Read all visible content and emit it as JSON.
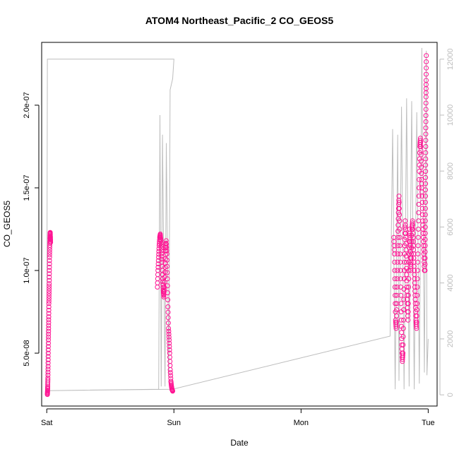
{
  "chart_data": {
    "type": "scatter",
    "title": "ATOM4 Northeast_Pacific_2 CO_GEOS5",
    "xlabel": "Date",
    "ylabel": "CO_GEOS5",
    "x_ticks": [
      "Sat",
      "Sun",
      "Mon",
      "Tue"
    ],
    "xlim": [
      -0.04,
      3.07
    ],
    "ylim": [
      1.8e-08,
      2.38e-07
    ],
    "y_ticks": [
      {
        "value": 5e-08,
        "label": "5.0e-08"
      },
      {
        "value": 1e-07,
        "label": "1.0e-07"
      },
      {
        "value": 1.5e-07,
        "label": "1.5e-07"
      },
      {
        "value": 2e-07,
        "label": "2.0e-07"
      }
    ],
    "y2lim": [
      -400,
      12600
    ],
    "y2_ticks": [
      {
        "value": 0,
        "label": "0"
      },
      {
        "value": 2000,
        "label": "2000"
      },
      {
        "value": 4000,
        "label": "4000"
      },
      {
        "value": 6000,
        "label": "6000"
      },
      {
        "value": 8000,
        "label": "8000"
      },
      {
        "value": 10000,
        "label": "10000"
      },
      {
        "value": 12000,
        "label": "12000"
      }
    ],
    "series": [
      {
        "kind": "points",
        "axis": "left",
        "color": "#ff1493",
        "segments": [
          {
            "x0": 0.005,
            "x1": 0.03,
            "y": [
              2.5e-08,
              2.7e-08,
              3e-08,
              3.5e-08,
              4.2e-08,
              5e-08,
              5.8e-08,
              6.5e-08,
              7.2e-08,
              8e-08,
              8.6e-08,
              9.2e-08,
              1e-07,
              1.08e-07,
              1.14e-07,
              1.19e-07,
              1.22e-07,
              1.23e-07,
              1.2e-07,
              1.17e-07
            ]
          },
          {
            "x0": 0.87,
            "x1": 0.99,
            "y": [
              9e-08,
              1e-07,
              1.08e-07,
              1.15e-07,
              1.2e-07,
              1.22e-07,
              1.18e-07,
              1.12e-07,
              1.05e-07,
              9.5e-08,
              8.8e-08,
              8.4e-08,
              9e-08,
              1.02e-07,
              1.12e-07,
              1.18e-07,
              1.1e-07,
              9.5e-08,
              7.8e-08,
              6.5e-08,
              5.8e-08,
              5e-08,
              4e-08,
              3.3e-08,
              3e-08,
              2.8e-08,
              2.7e-08
            ]
          },
          {
            "x0": 2.73,
            "x1": 2.97,
            "y": [
              1.2e-07,
              1.1e-07,
              9e-08,
              7e-08,
              6.5e-08,
              8e-08,
              1e-07,
              1.2e-07,
              1.35e-07,
              1.45e-07,
              1.3e-07,
              1.1e-07,
              9e-08,
              7e-08,
              5.5e-08,
              4.5e-08,
              5e-08,
              7e-08,
              9.5e-08,
              1.15e-07,
              1.3e-07,
              1.2e-07,
              1.05e-07,
              9e-08,
              8e-08,
              7e-08,
              9e-08,
              1.1e-07,
              1.25e-07,
              1.15e-07,
              1e-07,
              1.1e-07,
              1.25e-07,
              1.3e-07,
              1.2e-07,
              1.1e-07,
              1e-07,
              9e-08,
              8e-08,
              7e-08,
              6.5e-08,
              8e-08,
              1e-07,
              1.2e-07,
              1.4e-07,
              1.6e-07,
              1.75e-07,
              1.8e-07,
              1.7e-07,
              1.55e-07,
              1.45e-07,
              1.3e-07,
              1.2e-07,
              1.1e-07,
              1e-07
            ]
          },
          {
            "x0": 2.975,
            "x1": 2.985,
            "y": [
              1e-07,
              1.15e-07,
              1.3e-07,
              1.45e-07,
              1.6e-07,
              1.75e-07,
              1.9e-07,
              2.05e-07,
              2.15e-07,
              2.3e-07
            ]
          }
        ]
      },
      {
        "kind": "line",
        "axis": "right",
        "color": "#bdbdbd",
        "points": [
          [
            0.0,
            150
          ],
          [
            0.005,
            12000
          ],
          [
            1.0,
            12000
          ],
          [
            0.99,
            11300
          ],
          [
            0.98,
            11100
          ],
          [
            0.97,
            10900
          ],
          [
            0.96,
            600
          ],
          [
            0.94,
            9000
          ],
          [
            0.93,
            300
          ],
          [
            0.91,
            9300
          ],
          [
            0.9,
            300
          ],
          [
            0.89,
            10000
          ],
          [
            0.88,
            200
          ],
          [
            0.0,
            150
          ],
          [
            0.99,
            200
          ],
          [
            2.7,
            2100
          ],
          [
            2.72,
            9500
          ],
          [
            2.74,
            200
          ],
          [
            2.76,
            9300
          ],
          [
            2.77,
            500
          ],
          [
            2.79,
            10300
          ],
          [
            2.81,
            200
          ],
          [
            2.83,
            10600
          ],
          [
            2.85,
            300
          ],
          [
            2.87,
            10500
          ],
          [
            2.89,
            200
          ],
          [
            2.91,
            10100
          ],
          [
            2.93,
            400
          ],
          [
            2.95,
            12400
          ],
          [
            2.97,
            800
          ],
          [
            2.985,
            12300
          ],
          [
            2.99,
            700
          ],
          [
            3.0,
            2000
          ]
        ]
      }
    ],
    "grid": false,
    "legend": "none"
  }
}
